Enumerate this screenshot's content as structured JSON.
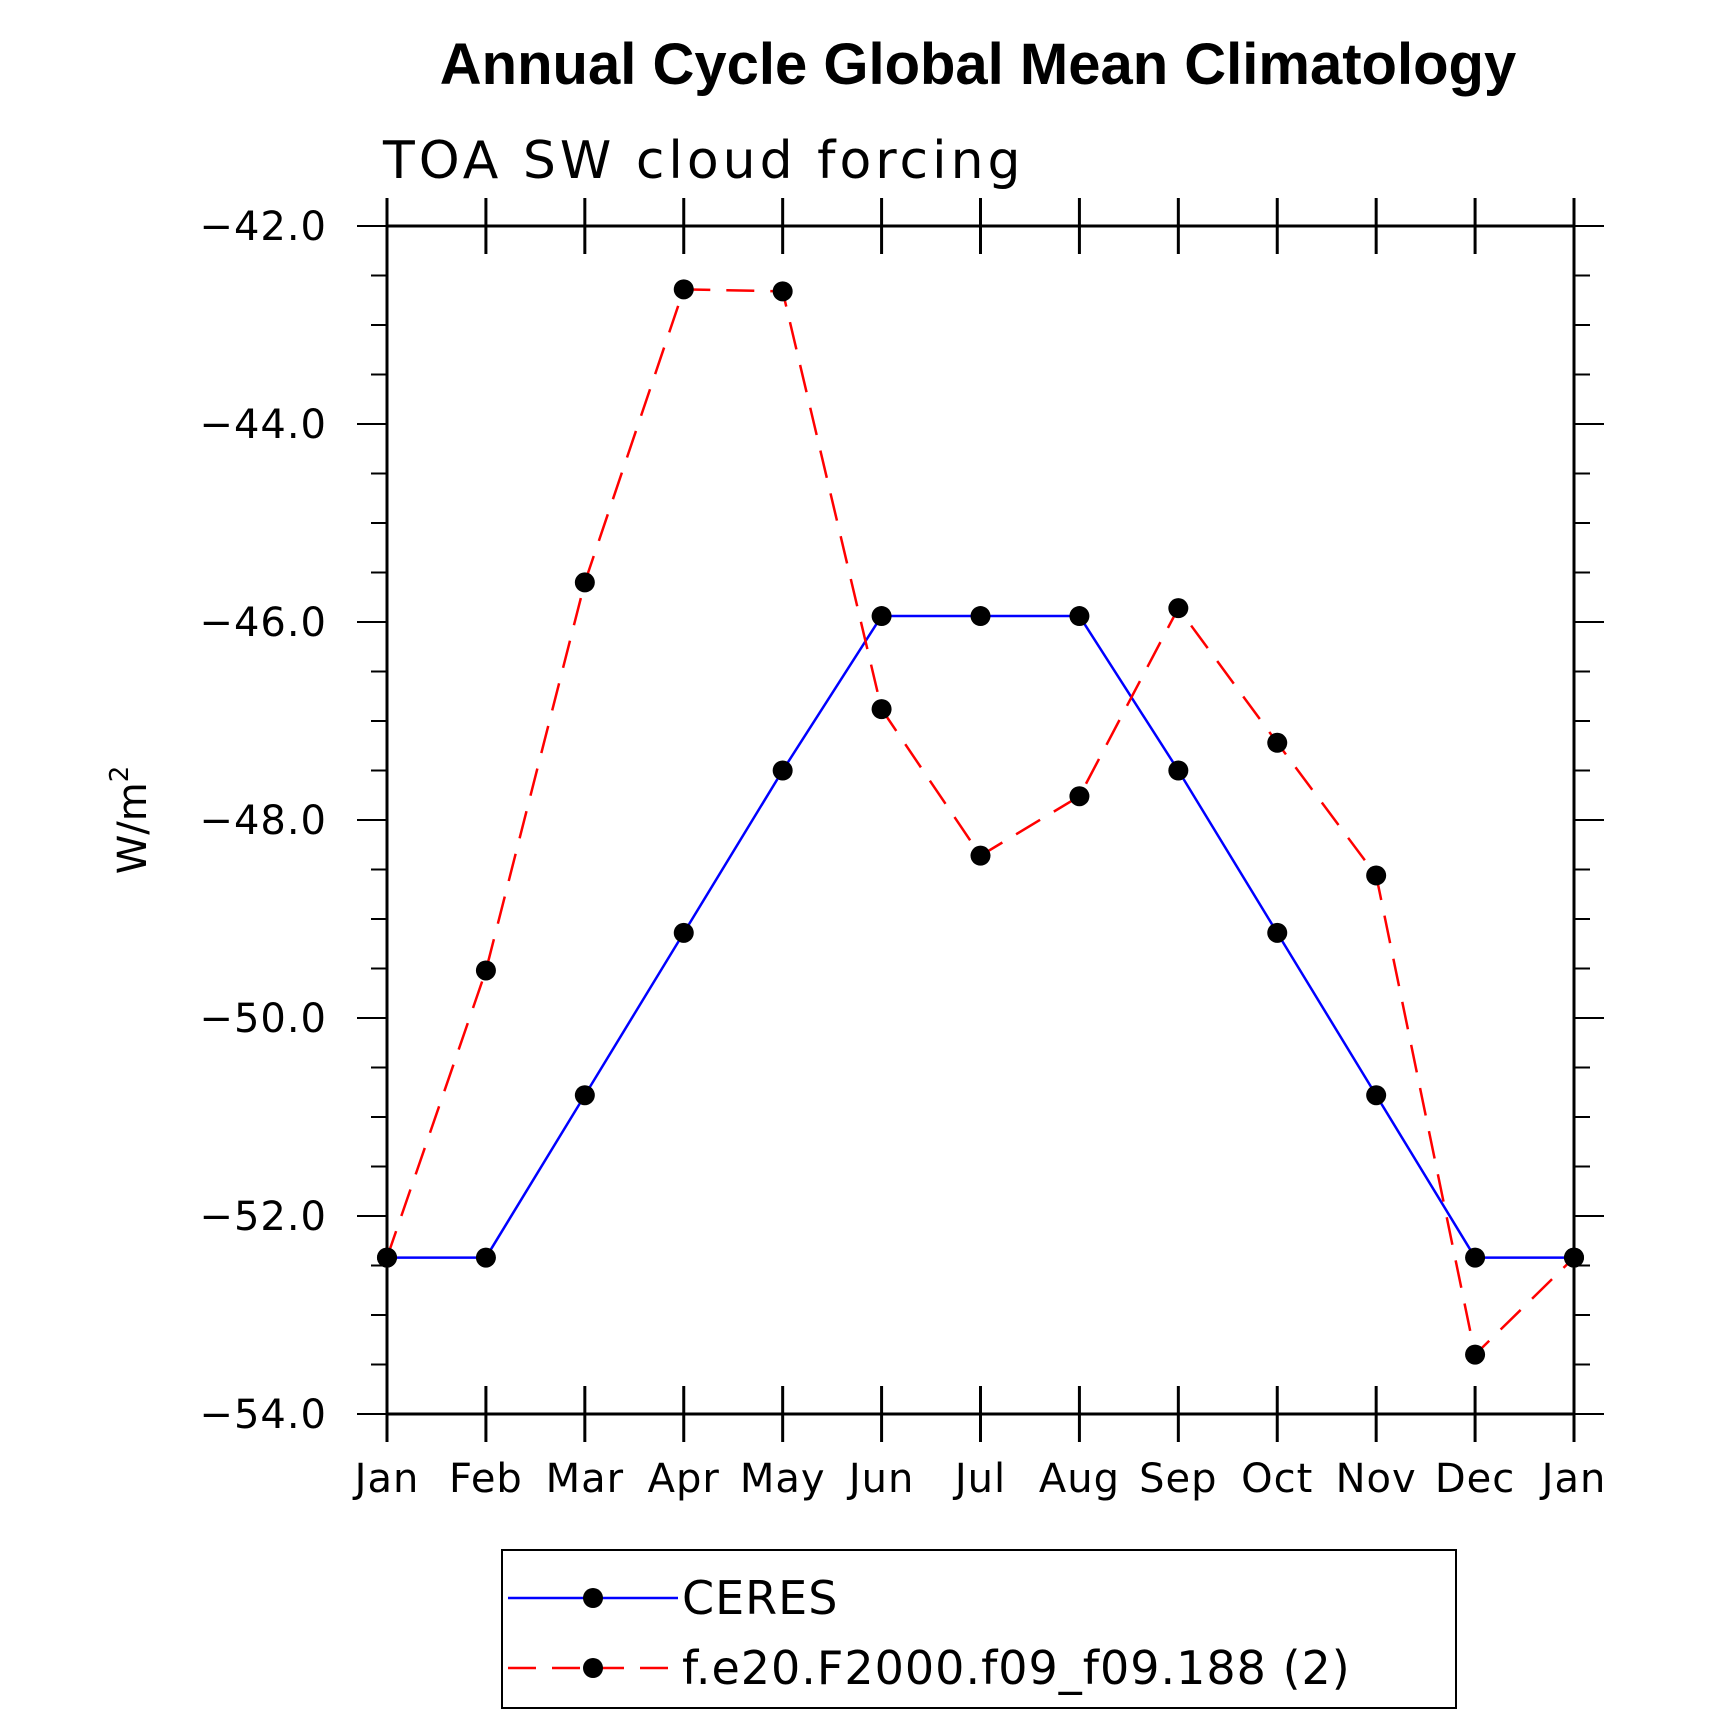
{
  "chart_data": {
    "type": "line",
    "title": "Annual Cycle Global Mean Climatology",
    "subtitle": "TOA SW cloud forcing",
    "xlabel": "",
    "ylabel": "W/m",
    "ylabel_superscript": "2",
    "categories": [
      "Jan",
      "Feb",
      "Mar",
      "Apr",
      "May",
      "Jun",
      "Jul",
      "Aug",
      "Sep",
      "Oct",
      "Nov",
      "Dec",
      "Jan"
    ],
    "ylim": [
      -54.0,
      -42.0
    ],
    "yticks": [
      -42.0,
      -44.0,
      -46.0,
      -48.0,
      -50.0,
      -52.0,
      -54.0
    ],
    "ytick_labels": [
      "−42.0",
      "−44.0",
      "−46.0",
      "−48.0",
      "−50.0",
      "−52.0",
      "−54.0"
    ],
    "grid": false,
    "legend_position": "bottom",
    "series": [
      {
        "name": "CERES",
        "color": "#0000ff",
        "dash": "solid",
        "values": [
          -52.42,
          -52.42,
          -50.78,
          -49.14,
          -47.5,
          -45.94,
          -45.94,
          -45.94,
          -47.5,
          -49.14,
          -50.78,
          -52.42,
          -52.42
        ]
      },
      {
        "name": "f.e20.F2000.f09_f09.188 (2)",
        "color": "#ff0000",
        "dash": "dashed",
        "values": [
          -52.42,
          -49.52,
          -45.6,
          -42.64,
          -42.66,
          -46.88,
          -48.36,
          -47.76,
          -45.86,
          -47.22,
          -48.56,
          -53.4,
          -52.42
        ]
      }
    ],
    "marker_color": "#000000"
  }
}
